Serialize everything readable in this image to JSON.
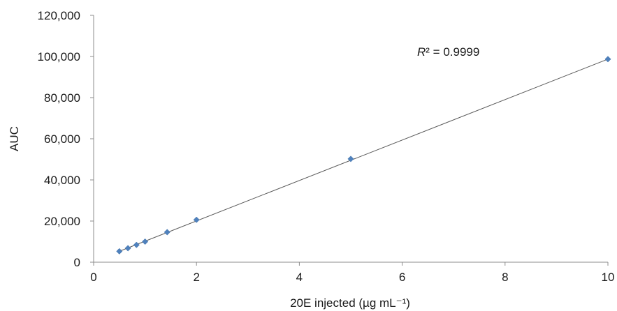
{
  "chart_data": {
    "type": "scatter",
    "title": "",
    "xlabel": "20E injected (µg mL⁻¹)",
    "ylabel": "AUC",
    "xlim": [
      0,
      10
    ],
    "ylim": [
      0,
      120000
    ],
    "x_ticks": [
      0,
      2,
      4,
      6,
      8,
      10
    ],
    "y_ticks": [
      0,
      20000,
      40000,
      60000,
      80000,
      100000,
      120000
    ],
    "x_tick_labels": [
      "0",
      "2",
      "4",
      "6",
      "8",
      "10"
    ],
    "y_tick_labels": [
      "0",
      "20,000",
      "40,000",
      "60,000",
      "80,000",
      "100,000",
      "120,000"
    ],
    "grid": false,
    "series": [
      {
        "x": [
          0.5,
          0.667,
          0.833,
          1.0,
          1.43,
          2.0,
          5.0,
          10.0
        ],
        "y": [
          5300,
          6800,
          8400,
          10000,
          14600,
          20600,
          50200,
          98700
        ],
        "color": "#4f81bd",
        "marker": "diamond"
      }
    ],
    "trendline": {
      "type": "linear",
      "x": [
        0.5,
        10.0
      ],
      "y": [
        5300,
        98700
      ],
      "color": "#595959"
    },
    "annotations": {
      "r2_symbol": "R",
      "r2_suffix": "² = 0.9999"
    }
  }
}
